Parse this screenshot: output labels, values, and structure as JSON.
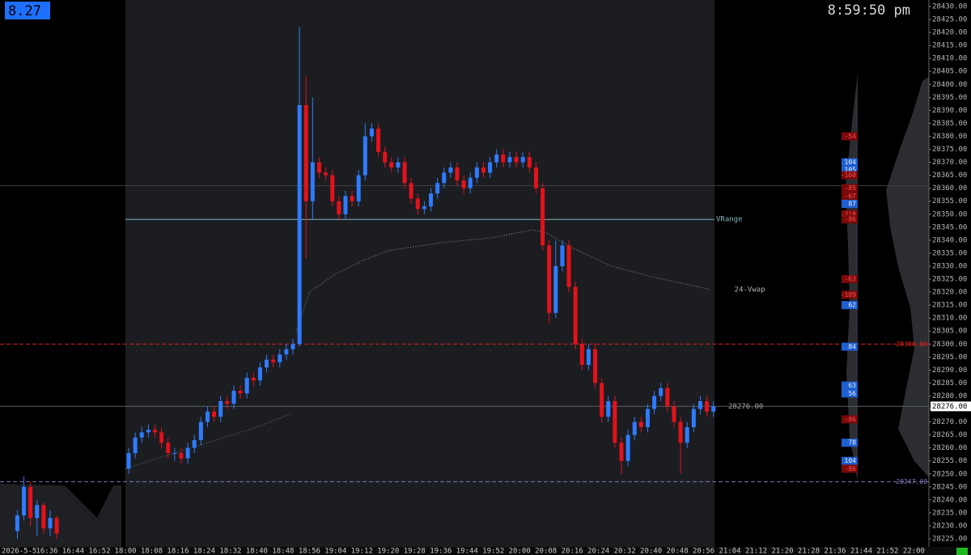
{
  "chart_data": {
    "type": "candlestick",
    "header_value": "8.27",
    "clock": "8:59:50 pm",
    "date_label": "2026-5-5",
    "up_color": "#2f7bff",
    "down_color": "#e3121b",
    "x": [
      "16:26",
      "16:28",
      "16:30",
      "16:32",
      "16:34",
      "16:36",
      "16:38",
      "18:00",
      "18:02",
      "18:04",
      "18:06",
      "18:08",
      "18:10",
      "18:12",
      "18:14",
      "18:16",
      "18:18",
      "18:20",
      "18:22",
      "18:24",
      "18:26",
      "18:28",
      "18:30",
      "18:32",
      "18:34",
      "18:36",
      "18:38",
      "18:40",
      "18:42",
      "18:44",
      "18:46",
      "18:48",
      "18:50",
      "18:52",
      "18:54",
      "18:56",
      "18:58",
      "19:00",
      "19:02",
      "19:04",
      "19:06",
      "19:08",
      "19:10",
      "19:12",
      "19:14",
      "19:16",
      "19:18",
      "19:20",
      "19:22",
      "19:24",
      "19:26",
      "19:28",
      "19:30",
      "19:32",
      "19:34",
      "19:36",
      "19:38",
      "19:40",
      "19:42",
      "19:44",
      "19:46",
      "19:48",
      "19:50",
      "19:52",
      "19:54",
      "19:56",
      "19:58",
      "20:00",
      "20:02",
      "20:04",
      "20:06",
      "20:08",
      "20:10",
      "20:12",
      "20:14",
      "20:16",
      "20:18",
      "20:20",
      "20:22",
      "20:24",
      "20:26",
      "20:28",
      "20:30",
      "20:32",
      "20:34",
      "20:36",
      "20:38",
      "20:40",
      "20:42",
      "20:44",
      "20:46",
      "20:48",
      "20:50",
      "20:52",
      "20:54",
      "20:56",
      "20:58"
    ],
    "open": [
      28228,
      28234,
      28245,
      28233,
      28238,
      28229,
      28233,
      28252,
      28258,
      28264,
      28266,
      28267,
      28266,
      28262,
      28258,
      28258,
      28256,
      28260,
      28263,
      28270,
      28274,
      28272,
      28278,
      28277,
      28282,
      28281,
      28287,
      28286,
      28291,
      28294,
      28293,
      28296,
      28298,
      28300,
      28392,
      28355,
      28370,
      28366,
      28365,
      28355,
      28350,
      28357,
      28355,
      28365,
      28380,
      28383,
      28374,
      28370,
      28368,
      28370,
      28362,
      28356,
      28352,
      28353,
      28358,
      28362,
      28366,
      28368,
      28363,
      28360,
      28364,
      28368,
      28366,
      28370,
      28373,
      28370,
      28372,
      28370,
      28372,
      28368,
      28360,
      28338,
      28312,
      28330,
      28338,
      28322,
      28300,
      28292,
      28298,
      28285,
      28272,
      28278,
      28262,
      28255,
      28265,
      28270,
      28268,
      28275,
      28280,
      28283,
      28276,
      28270,
      28262,
      28268,
      28275,
      28278,
      28274
    ],
    "high": [
      28236,
      28249,
      28247,
      28240,
      28239,
      28236,
      28234,
      28260,
      28266,
      28268,
      28269,
      28269,
      28268,
      28264,
      28260,
      28260,
      28262,
      28265,
      28272,
      28276,
      28276,
      28280,
      28280,
      28284,
      28284,
      28289,
      28289,
      28293,
      28296,
      28296,
      28298,
      28300,
      28302,
      28422,
      28403,
      28395,
      28372,
      28368,
      28367,
      28357,
      28359,
      28359,
      28367,
      28385,
      28385,
      28385,
      28376,
      28372,
      28372,
      28372,
      28364,
      28358,
      28355,
      28360,
      28364,
      28368,
      28370,
      28370,
      28365,
      28366,
      28370,
      28370,
      28372,
      28375,
      28375,
      28374,
      28374,
      28374,
      28374,
      28370,
      28362,
      28340,
      28340,
      28340,
      28340,
      28324,
      28302,
      28300,
      28300,
      28287,
      28280,
      28280,
      28264,
      28267,
      28272,
      28272,
      28277,
      28282,
      28285,
      28285,
      28278,
      28272,
      28270,
      28277,
      28280,
      28280,
      28278
    ],
    "low": [
      28225,
      28232,
      28230,
      28226,
      28227,
      28226,
      28225,
      28250,
      28256,
      28262,
      28264,
      28264,
      28260,
      28256,
      28255,
      28254,
      28254,
      28258,
      28261,
      28268,
      28270,
      28270,
      28275,
      28275,
      28279,
      28279,
      28284,
      28284,
      28289,
      28291,
      28291,
      28294,
      28296,
      28299,
      28333,
      28348,
      28364,
      28363,
      28353,
      28348,
      28348,
      28353,
      28353,
      28363,
      28378,
      28372,
      28368,
      28366,
      28366,
      28360,
      28354,
      28350,
      28350,
      28351,
      28356,
      28360,
      28364,
      28361,
      28358,
      28358,
      28362,
      28364,
      28364,
      28368,
      28368,
      28368,
      28368,
      28368,
      28366,
      28358,
      28336,
      28308,
      28310,
      28328,
      28320,
      28298,
      28290,
      28290,
      28283,
      28270,
      28270,
      28260,
      28250,
      28253,
      28263,
      28266,
      28266,
      28273,
      28278,
      28274,
      28268,
      28250,
      28260,
      28266,
      28273,
      28272,
      28272
    ],
    "close": [
      28234,
      28245,
      28233,
      28238,
      28229,
      28233,
      28227,
      28258,
      28264,
      28266,
      28267,
      28266,
      28262,
      28258,
      28258,
      28256,
      28260,
      28263,
      28270,
      28274,
      28272,
      28278,
      28277,
      28282,
      28281,
      28287,
      28286,
      28291,
      28294,
      28293,
      28296,
      28298,
      28300,
      28392,
      28355,
      28370,
      28366,
      28365,
      28355,
      28350,
      28357,
      28355,
      28365,
      28380,
      28383,
      28374,
      28370,
      28368,
      28370,
      28362,
      28356,
      28352,
      28353,
      28358,
      28362,
      28366,
      28368,
      28363,
      28360,
      28364,
      28368,
      28366,
      28370,
      28373,
      28370,
      28372,
      28370,
      28372,
      28368,
      28360,
      28338,
      28312,
      28330,
      28338,
      28322,
      28300,
      28292,
      28298,
      28285,
      28272,
      28278,
      28262,
      28255,
      28265,
      28270,
      28268,
      28275,
      28280,
      28283,
      28276,
      28270,
      28262,
      28268,
      28275,
      28278,
      28274,
      28276
    ],
    "overlays": [
      {
        "name": "24-Vwap",
        "color": "#8a8e96",
        "x": [
          "18:52",
          "18:56",
          "19:04",
          "19:12",
          "19:20",
          "19:36",
          "19:52",
          "20:04",
          "20:08",
          "20:16",
          "20:28",
          "20:40",
          "20:58"
        ],
        "values": [
          28305,
          28320,
          28327,
          28332,
          28336,
          28339,
          28341,
          28344,
          28343,
          28337,
          28330,
          28326,
          28321
        ]
      },
      {
        "color": "#6e727a",
        "x": [
          "18:00",
          "18:10",
          "18:20",
          "18:30",
          "18:40",
          "18:50"
        ],
        "values": [
          28252,
          28256,
          28260,
          28264,
          28268,
          28273
        ]
      }
    ],
    "levels": [
      {
        "value": 28348,
        "label": "VRange",
        "color": "#7fb8c0",
        "dash": false
      },
      {
        "value": 28300,
        "label": "28300.00",
        "color": "#e02020",
        "dash": true
      },
      {
        "value": 28247,
        "label": "28247.00",
        "color": "#7a7ab8",
        "dash": true
      },
      {
        "value": 28276,
        "label": "28276.00",
        "color": "#5a5e66",
        "dash": false
      },
      {
        "value": 28361,
        "color": "#3a3d44",
        "dash": false
      }
    ],
    "delta_labels": {
      "prices": [
        28380,
        28370,
        28367,
        28365,
        28360,
        28357,
        28354,
        28350,
        28348,
        28325,
        28319,
        28315,
        28299,
        28284,
        28281,
        28271,
        28262,
        28255,
        28252
      ],
      "values": [
        -54,
        104,
        105,
        -160,
        -85,
        -67,
        87,
        -218,
        -86,
        -63,
        -109,
        62,
        84,
        63,
        56,
        -86,
        78,
        104,
        -86
      ]
    },
    "ylim": [
      28225,
      28430
    ],
    "yticks": [
      {
        "value": 28225,
        "label": "28225.00"
      },
      {
        "value": 28230,
        "label": "28230.00"
      },
      {
        "value": 28235,
        "label": "28235.00"
      },
      {
        "value": 28240,
        "label": "28240.00"
      },
      {
        "value": 28245,
        "label": "28245.00"
      },
      {
        "value": 28250,
        "label": "28250.00"
      },
      {
        "value": 28255,
        "label": "28255.00"
      },
      {
        "value": 28260,
        "label": "28260.00"
      },
      {
        "value": 28265,
        "label": "28265.00"
      },
      {
        "value": 28270,
        "label": "28270.00"
      },
      {
        "value": 28275,
        "label": "28275.00"
      },
      {
        "value": 28280,
        "label": "28280.00"
      },
      {
        "value": 28285,
        "label": "28285.00"
      },
      {
        "value": 28290,
        "label": "28290.00"
      },
      {
        "value": 28295,
        "label": "28295.00"
      },
      {
        "value": 28300,
        "label": "28300.00"
      },
      {
        "value": 28305,
        "label": "28305.00"
      },
      {
        "value": 28310,
        "label": "28310.00"
      },
      {
        "value": 28315,
        "label": "28315.00"
      },
      {
        "value": 28320,
        "label": "28320.00"
      },
      {
        "value": 28325,
        "label": "28325.00"
      },
      {
        "value": 28330,
        "label": "28330.00"
      },
      {
        "value": 28335,
        "label": "28335.00"
      },
      {
        "value": 28340,
        "label": "28340.00"
      },
      {
        "value": 28345,
        "label": "28345.00"
      },
      {
        "value": 28350,
        "label": "28350.00"
      },
      {
        "value": 28355,
        "label": "28355.00"
      },
      {
        "value": 28360,
        "label": "28360.00"
      },
      {
        "value": 28365,
        "label": "28365.00"
      },
      {
        "value": 28370,
        "label": "28370.00"
      },
      {
        "value": 28375,
        "label": "28375.00"
      },
      {
        "value": 28380,
        "label": "28380.00"
      },
      {
        "value": 28385,
        "label": "28385.00"
      },
      {
        "value": 28390,
        "label": "28390.00"
      },
      {
        "value": 28395,
        "label": "28395.00"
      },
      {
        "value": 28400,
        "label": "28400.00"
      },
      {
        "value": 28405,
        "label": "28405.00"
      },
      {
        "value": 28410,
        "label": "28410.00"
      },
      {
        "value": 28415,
        "label": "28415.00"
      },
      {
        "value": 28420,
        "label": "28420.00"
      },
      {
        "value": 28425,
        "label": "28425.00"
      },
      {
        "value": 28430,
        "label": "28430.00"
      }
    ],
    "xticks": [
      "16:36",
      "16:44",
      "16:52",
      "18:00",
      "18:08",
      "18:16",
      "18:24",
      "18:32",
      "18:40",
      "18:48",
      "18:56",
      "19:04",
      "19:12",
      "19:20",
      "19:28",
      "19:36",
      "19:44",
      "19:52",
      "20:00",
      "20:08",
      "20:16",
      "20:24",
      "20:32",
      "20:40",
      "20:48",
      "20:56",
      "21:04",
      "21:12",
      "21:20",
      "21:28",
      "21:36",
      "21:44",
      "21:52",
      "22:00"
    ]
  }
}
